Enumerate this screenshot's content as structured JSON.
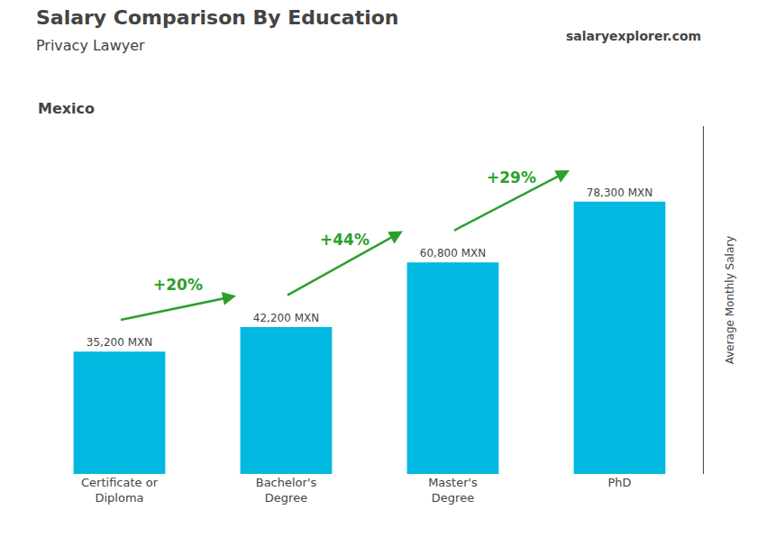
{
  "chart_data": {
    "type": "bar",
    "title": "Salary Comparison By Education",
    "subtitle": "Privacy Lawyer",
    "ylabel": "Average Monthly Salary",
    "categories": [
      "Certificate or\nDiploma",
      "Bachelor's\nDegree",
      "Master's\nDegree",
      "PhD"
    ],
    "values": [
      35200,
      42200,
      60800,
      78300
    ],
    "value_labels": [
      "35,200 MXN",
      "42,200 MXN",
      "60,800 MXN",
      "78,300 MXN"
    ],
    "data_labels": true,
    "color": "#00b8e0",
    "ylim": [
      0,
      100000
    ],
    "yticks": [],
    "tick_labels": "x",
    "grid": false,
    "annotations": [
      {
        "text": "Mexico"
      },
      {
        "text": "salaryexplorer.com"
      },
      {
        "text": "+20%",
        "from": "Certificate or\nDiploma",
        "to": "Bachelor's\nDegree",
        "color": "#2ca02c"
      },
      {
        "text": "+44%",
        "from": "Bachelor's\nDegree",
        "to": "Master's\nDegree",
        "color": "#2ca02c"
      },
      {
        "text": "+29%",
        "from": "Master's\nDegree",
        "to": "PhD",
        "color": "#2ca02c"
      }
    ]
  }
}
